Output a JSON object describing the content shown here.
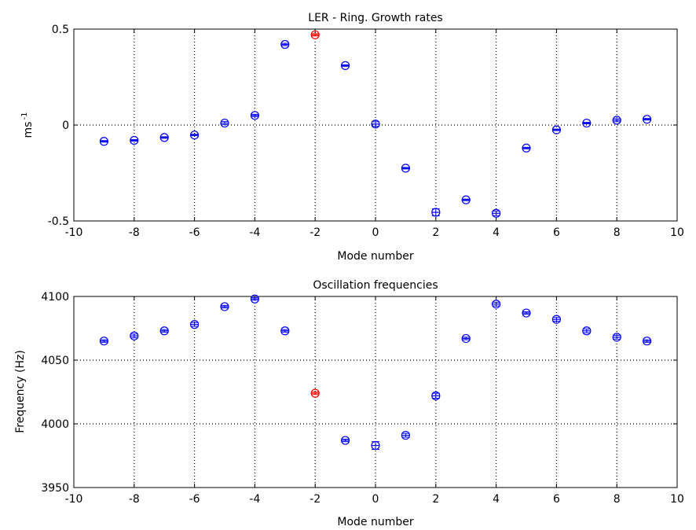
{
  "chart_data": [
    {
      "type": "scatter",
      "title": "LER - Ring. Growth rates",
      "xlabel": "Mode number",
      "ylabel": "ms",
      "ylabel_sup": "-1",
      "xlim": [
        -10,
        10
      ],
      "ylim": [
        -0.5,
        0.5
      ],
      "xticks": [
        -10,
        -8,
        -6,
        -4,
        -2,
        0,
        2,
        4,
        6,
        8,
        10
      ],
      "yticks": [
        -0.5,
        0,
        0.5
      ],
      "ytick_labels": [
        "-0.5",
        "0",
        "0.5"
      ],
      "grid": true,
      "highlight_color": "#ff0000",
      "point_color": "#0000ff",
      "series": [
        {
          "x": [
            -9,
            -8,
            -7,
            -6,
            -5,
            -4,
            -3,
            -2,
            -1,
            0,
            1,
            2,
            3,
            4,
            5,
            6,
            7,
            8,
            9
          ],
          "y": [
            -0.085,
            -0.08,
            -0.065,
            -0.052,
            0.01,
            0.05,
            0.42,
            0.47,
            0.31,
            0.005,
            -0.225,
            -0.455,
            -0.39,
            -0.46,
            -0.12,
            -0.025,
            0.01,
            0.025,
            0.03
          ],
          "error": [
            0.004,
            0.004,
            0.004,
            0.004,
            0.008,
            0.006,
            0.006,
            0.006,
            0.004,
            0.012,
            0.004,
            0.018,
            0.004,
            0.012,
            0.004,
            0.004,
            0.004,
            0.008,
            0.004
          ],
          "highlight": [
            false,
            false,
            false,
            false,
            false,
            false,
            false,
            true,
            false,
            false,
            false,
            false,
            false,
            false,
            false,
            false,
            false,
            false,
            false
          ]
        }
      ]
    },
    {
      "type": "scatter",
      "title": "Oscillation frequencies",
      "xlabel": "Mode number",
      "ylabel": "Frequency (Hz)",
      "ylabel_sup": "",
      "xlim": [
        -10,
        10
      ],
      "ylim": [
        3950,
        4100
      ],
      "xticks": [
        -10,
        -8,
        -6,
        -4,
        -2,
        0,
        2,
        4,
        6,
        8,
        10
      ],
      "yticks": [
        3950,
        4000,
        4050,
        4100
      ],
      "ytick_labels": [
        "3950",
        "4000",
        "4050",
        "4100"
      ],
      "grid": true,
      "highlight_color": "#ff0000",
      "point_color": "#0000ff",
      "series": [
        {
          "x": [
            -9,
            -8,
            -7,
            -6,
            -5,
            -4,
            -3,
            -2,
            -1,
            0,
            1,
            2,
            3,
            4,
            5,
            6,
            7,
            8,
            9
          ],
          "y": [
            4065,
            4069,
            4073,
            4078,
            4092,
            4098,
            4073,
            4024,
            3987,
            3983,
            3991,
            4022,
            4067,
            4094,
            4087,
            4082,
            4073,
            4068,
            4065
          ],
          "error": [
            1,
            1.5,
            1,
            1.5,
            1,
            1,
            1,
            1,
            1,
            3,
            1.5,
            2,
            1,
            1.5,
            1,
            1.5,
            1.5,
            1.5,
            1
          ],
          "highlight": [
            false,
            false,
            false,
            false,
            false,
            false,
            false,
            true,
            false,
            false,
            false,
            false,
            false,
            false,
            false,
            false,
            false,
            false,
            false
          ]
        }
      ]
    }
  ]
}
